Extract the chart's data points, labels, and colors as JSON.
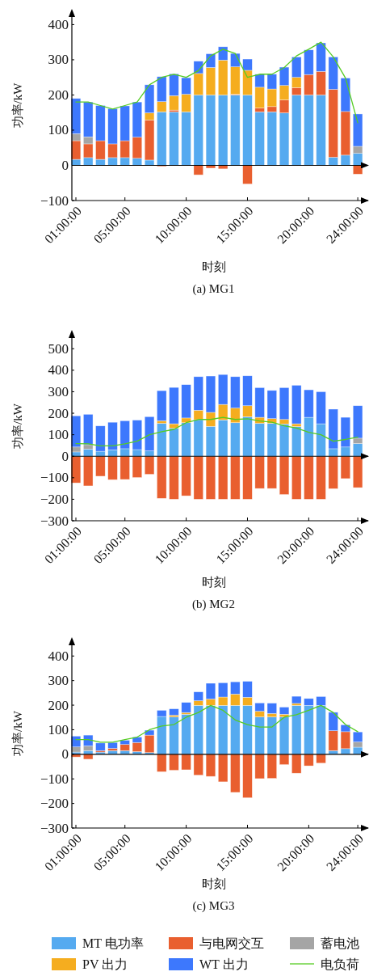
{
  "chart_data": [
    {
      "type": "bar",
      "stacked": true,
      "title": "(a) MG1",
      "ref_lines": [
        {
          "axis": "y",
          "value": 0
        }
      ],
      "xlabel": "时刻",
      "ylabel": "功率/kW",
      "x": [
        1,
        2,
        3,
        4,
        5,
        6,
        7,
        8,
        9,
        10,
        11,
        12,
        13,
        14,
        15,
        16,
        17,
        18,
        19,
        20,
        21,
        22,
        23,
        24
      ],
      "xlim": [
        0.67,
        24.85
      ],
      "xticks": [
        {
          "value": 1,
          "label": "01:00:00"
        },
        {
          "value": 5,
          "label": "05:00:00"
        },
        {
          "value": 10,
          "label": "10:00:00"
        },
        {
          "value": 15,
          "label": "15:00:00"
        },
        {
          "value": 20,
          "label": "20:00:00"
        },
        {
          "value": 24,
          "label": "24:00:00"
        }
      ],
      "ylim": [
        -100,
        440
      ],
      "yticks": [
        -100,
        0,
        100,
        200,
        300,
        400
      ],
      "series": [
        {
          "color": "#55aaf0",
          "values": [
            17,
            22,
            17,
            22,
            22,
            20,
            15,
            152,
            152,
            152,
            200,
            200,
            200,
            200,
            200,
            152,
            152,
            149,
            200,
            200,
            200,
            23,
            29,
            34
          ]
        },
        {
          "color": "#e95f2f",
          "values": [
            53,
            39,
            53,
            39,
            48,
            60,
            114,
            -3,
            5,
            0,
            -27,
            -8,
            -10,
            2,
            -53,
            11,
            15,
            37,
            21,
            58,
            67,
            193,
            124,
            -25
          ]
        },
        {
          "color": "#a5a5a5",
          "values": [
            20,
            20,
            0,
            0,
            0,
            0,
            0,
            0,
            0,
            0,
            0,
            0,
            0,
            0,
            0,
            0,
            0,
            0,
            0,
            0,
            0,
            0,
            0,
            20
          ]
        },
        {
          "color": "#f5ad1f",
          "values": [
            0,
            0,
            0,
            0,
            0,
            0,
            20,
            29,
            41,
            50,
            61,
            78,
            99,
            78,
            70,
            59,
            50,
            41,
            29,
            0,
            0,
            0,
            0,
            0
          ]
        },
        {
          "color": "#3d78fd",
          "values": [
            100,
            99,
            100,
            100,
            99,
            100,
            80,
            71,
            62,
            47,
            35,
            39,
            38,
            38,
            32,
            37,
            42,
            52,
            58,
            70,
            81,
            92,
            95,
            92
          ]
        },
        {
          "type": "line",
          "color": "#55cc22",
          "values": [
            180,
            180,
            170,
            160,
            170,
            180,
            229,
            250,
            259,
            250,
            269,
            311,
            330,
            318,
            250,
            259,
            259,
            278,
            311,
            330,
            350,
            308,
            248,
            121
          ]
        }
      ]
    },
    {
      "type": "bar",
      "stacked": true,
      "title": "(b) MG2",
      "ref_lines": [
        {
          "axis": "y",
          "value": 0
        }
      ],
      "xlabel": "时刻",
      "ylabel": "功率/kW",
      "x": [
        1,
        2,
        3,
        4,
        5,
        6,
        7,
        8,
        9,
        10,
        11,
        12,
        13,
        14,
        15,
        16,
        17,
        18,
        19,
        20,
        21,
        22,
        23,
        24
      ],
      "xlim": [
        0.67,
        24.85
      ],
      "xticks": [
        {
          "value": 1,
          "label": "01:00:00"
        },
        {
          "value": 5,
          "label": "05:00:00"
        },
        {
          "value": 10,
          "label": "10:00:00"
        },
        {
          "value": 15,
          "label": "15:00:00"
        },
        {
          "value": 20,
          "label": "20:00:00"
        },
        {
          "value": 24,
          "label": "24:00:00"
        }
      ],
      "ylim": [
        -300,
        580
      ],
      "yticks": [
        -300,
        -200,
        -100,
        0,
        100,
        200,
        300,
        400,
        500
      ],
      "series": [
        {
          "color": "#55aaf0",
          "values": [
            20,
            33,
            23,
            30,
            35,
            31,
            25,
            153,
            130,
            156,
            170,
            139,
            169,
            156,
            184,
            153,
            153,
            150,
            138,
            181,
            151,
            35,
            43,
            59
          ]
        },
        {
          "color": "#e95f2f",
          "values": [
            -124,
            -138,
            -93,
            -109,
            -108,
            -99,
            -84,
            -196,
            -200,
            -184,
            -200,
            -200,
            -200,
            -200,
            -200,
            -150,
            -150,
            -178,
            -200,
            -200,
            -200,
            -151,
            -104,
            -146
          ]
        },
        {
          "color": "#a5a5a5",
          "values": [
            23,
            21,
            0,
            0,
            0,
            0,
            0,
            0,
            0,
            0,
            0,
            0,
            0,
            0,
            0,
            0,
            0,
            0,
            0,
            0,
            0,
            0,
            0,
            25
          ]
        },
        {
          "color": "#f5ad1f",
          "values": [
            0,
            0,
            0,
            0,
            0,
            0,
            0,
            12,
            21,
            22,
            44,
            65,
            72,
            68,
            51,
            28,
            22,
            21,
            13,
            0,
            0,
            0,
            0,
            0
          ]
        },
        {
          "color": "#3d78fd",
          "values": [
            145,
            141,
            118,
            128,
            130,
            137,
            159,
            140,
            169,
            155,
            156,
            169,
            139,
            146,
            139,
            138,
            131,
            148,
            179,
            128,
            149,
            184,
            138,
            151
          ]
        },
        {
          "type": "line",
          "color": "#55cc22",
          "values": [
            59,
            58,
            48,
            48,
            58,
            70,
            100,
            114,
            125,
            156,
            171,
            171,
            181,
            171,
            174,
            164,
            158,
            141,
            131,
            111,
            100,
            70,
            78,
            89
          ]
        }
      ]
    },
    {
      "type": "bar",
      "stacked": true,
      "title": "(c) MG3",
      "ref_lines": [
        {
          "axis": "y",
          "value": 0
        }
      ],
      "xlabel": "时刻",
      "ylabel": "功率/kW",
      "legend": "bottom",
      "x": [
        1,
        2,
        3,
        4,
        5,
        6,
        7,
        8,
        9,
        10,
        11,
        12,
        13,
        14,
        15,
        16,
        17,
        18,
        19,
        20,
        21,
        22,
        23,
        24
      ],
      "xlim": [
        0.67,
        24.85
      ],
      "xticks": [
        {
          "value": 1,
          "label": "01:00:00"
        },
        {
          "value": 5,
          "label": "05:00:00"
        },
        {
          "value": 10,
          "label": "10:00:00"
        },
        {
          "value": 15,
          "label": "15:00:00"
        },
        {
          "value": 20,
          "label": "20:00:00"
        },
        {
          "value": 24,
          "label": "24:00:00"
        }
      ],
      "ylim": [
        -300,
        470
      ],
      "yticks": [
        -300,
        -200,
        -100,
        0,
        100,
        200,
        300,
        400
      ],
      "series": [
        {
          "name": "MT 电功率",
          "color": "#55aaf0",
          "values": [
            9,
            15,
            9,
            15,
            15,
            11,
            7,
            154,
            152,
            163,
            199,
            199,
            199,
            199,
            199,
            152,
            152,
            152,
            199,
            199,
            199,
            15,
            23,
            29
          ]
        },
        {
          "name": "与电网交互",
          "color": "#e95f2f",
          "values": [
            -11,
            -20,
            6,
            9,
            25,
            37,
            71,
            -71,
            -65,
            -63,
            -85,
            -90,
            -112,
            -155,
            -177,
            -99,
            -98,
            -42,
            -77,
            -47,
            -36,
            81,
            69,
            0
          ]
        },
        {
          "name": "蓄电池",
          "color": "#a5a5a5",
          "values": [
            21,
            19,
            0,
            0,
            0,
            0,
            0,
            0,
            0,
            0,
            0,
            0,
            0,
            0,
            0,
            0,
            0,
            0,
            0,
            0,
            0,
            0,
            0,
            21
          ]
        },
        {
          "name": "PV 出力",
          "color": "#f5ad1f",
          "values": [
            0,
            0,
            0,
            0,
            0,
            0,
            0,
            0,
            7,
            7,
            19,
            26,
            34,
            46,
            33,
            23,
            14,
            11,
            8,
            0,
            0,
            0,
            0,
            0
          ]
        },
        {
          "name": "WT 出力",
          "color": "#3d78fd",
          "values": [
            44,
            44,
            31,
            24,
            17,
            22,
            20,
            25,
            26,
            41,
            36,
            64,
            58,
            50,
            65,
            34,
            42,
            29,
            29,
            28,
            36,
            75,
            28,
            41
          ]
        },
        {
          "name": "电负荷",
          "type": "line",
          "color": "#55cc22",
          "values": [
            60,
            60,
            49,
            49,
            60,
            70,
            100,
            115,
            121,
            151,
            170,
            199,
            179,
            140,
            121,
            111,
            111,
            151,
            161,
            179,
            199,
            170,
            121,
            92
          ]
        }
      ]
    }
  ]
}
